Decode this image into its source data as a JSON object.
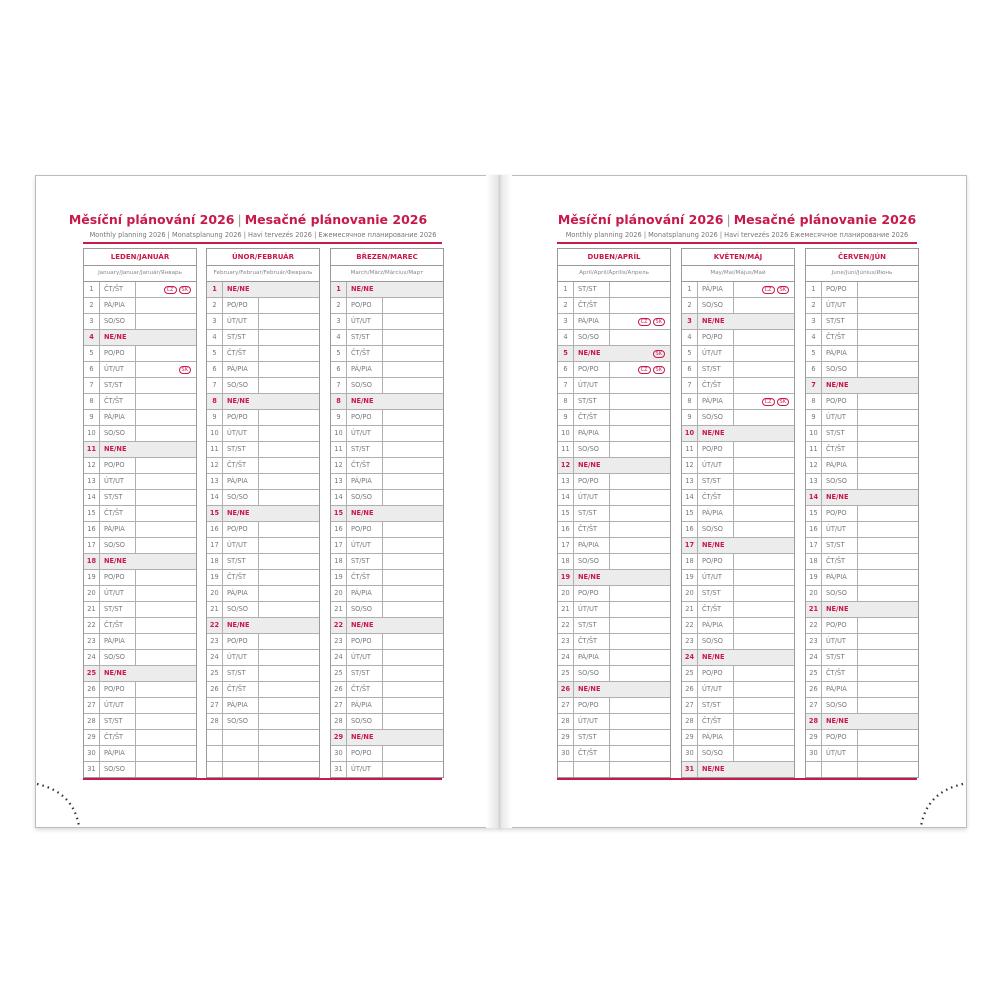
{
  "left": {
    "title_cz": "Měsíční plánování 2026",
    "title_sk": "Mesačné plánovanie 2026",
    "subtitle": "Monthly planning 2026 | Monatsplanung 2026 | Havi tervezés 2026 | Ежемесячное планирование 2026"
  },
  "right": {
    "title_cz": "Měsíční plánování 2026",
    "title_sk": "Mesačné plánovanie 2026",
    "subtitle": "Monthly planning 2026 | Monatsplanung 2026 | Havi tervezés 2026  Ежемесячное планирование 2026"
  },
  "colors": {
    "accent": "#c8194a",
    "sunday_bg": "#ececec",
    "grid": "#9a9a9a"
  },
  "months": [
    {
      "name": "LEDEN/JANUÁR",
      "subtitle": "January/Januar/Január/Январь",
      "weekdays": [
        "ČT/ŠT",
        "PÁ/PIA",
        "SO/SO",
        "NE/NE",
        "PO/PO",
        "ÚT/UT",
        "ST/ST",
        "ČT/ŠT",
        "PÁ/PIA",
        "SO/SO",
        "NE/NE",
        "PO/PO",
        "ÚT/UT",
        "ST/ST",
        "ČT/ŠT",
        "PÁ/PIA",
        "SO/SO",
        "NE/NE",
        "PO/PO",
        "ÚT/UT",
        "ST/ST",
        "ČT/ŠT",
        "PÁ/PIA",
        "SO/SO",
        "NE/NE",
        "PO/PO",
        "ÚT/UT",
        "ST/ST",
        "ČT/ŠT",
        "PÁ/PIA",
        "SO/SO"
      ],
      "holidays": {
        "1": [
          "CZ",
          "SK"
        ],
        "6": [
          "SK"
        ]
      }
    },
    {
      "name": "ÚNOR/FEBRUÁR",
      "subtitle": "February/Februar/Február/Февраль",
      "weekdays": [
        "NE/NE",
        "PO/PO",
        "ÚT/UT",
        "ST/ST",
        "ČT/ŠT",
        "PÁ/PIA",
        "SO/SO",
        "NE/NE",
        "PO/PO",
        "ÚT/UT",
        "ST/ST",
        "ČT/ŠT",
        "PÁ/PIA",
        "SO/SO",
        "NE/NE",
        "PO/PO",
        "ÚT/UT",
        "ST/ST",
        "ČT/ŠT",
        "PÁ/PIA",
        "SO/SO",
        "NE/NE",
        "PO/PO",
        "ÚT/UT",
        "ST/ST",
        "ČT/ŠT",
        "PÁ/PIA",
        "SO/SO"
      ],
      "holidays": {}
    },
    {
      "name": "BŘEZEN/MAREC",
      "subtitle": "March/März/Március/Март",
      "weekdays": [
        "NE/NE",
        "PO/PO",
        "ÚT/UT",
        "ST/ST",
        "ČT/ŠT",
        "PÁ/PIA",
        "SO/SO",
        "NE/NE",
        "PO/PO",
        "ÚT/UT",
        "ST/ST",
        "ČT/ŠT",
        "PÁ/PIA",
        "SO/SO",
        "NE/NE",
        "PO/PO",
        "ÚT/UT",
        "ST/ST",
        "ČT/ŠT",
        "PÁ/PIA",
        "SO/SO",
        "NE/NE",
        "PO/PO",
        "ÚT/UT",
        "ST/ST",
        "ČT/ŠT",
        "PÁ/PIA",
        "SO/SO",
        "NE/NE",
        "PO/PO",
        "ÚT/UT"
      ],
      "holidays": {}
    },
    {
      "name": "DUBEN/APRÍL",
      "subtitle": "April/April/Április/Апрель",
      "weekdays": [
        "ST/ST",
        "ČT/ŠT",
        "PÁ/PIA",
        "SO/SO",
        "NE/NE",
        "PO/PO",
        "ÚT/UT",
        "ST/ST",
        "ČT/ŠT",
        "PÁ/PIA",
        "SO/SO",
        "NE/NE",
        "PO/PO",
        "ÚT/UT",
        "ST/ST",
        "ČT/ŠT",
        "PÁ/PIA",
        "SO/SO",
        "NE/NE",
        "PO/PO",
        "ÚT/UT",
        "ST/ST",
        "ČT/ŠT",
        "PÁ/PIA",
        "SO/SO",
        "NE/NE",
        "PO/PO",
        "ÚT/UT",
        "ST/ST",
        "ČT/ŠT"
      ],
      "holidays": {
        "3": [
          "CZ",
          "SK"
        ],
        "5": [
          "SK"
        ],
        "6": [
          "CZ",
          "SK"
        ]
      }
    },
    {
      "name": "KVĚTEN/MÁJ",
      "subtitle": "May/Mai/Május/Май",
      "weekdays": [
        "PÁ/PIA",
        "SO/SO",
        "NE/NE",
        "PO/PO",
        "ÚT/UT",
        "ST/ST",
        "ČT/ŠT",
        "PÁ/PIA",
        "SO/SO",
        "NE/NE",
        "PO/PO",
        "ÚT/UT",
        "ST/ST",
        "ČT/ŠT",
        "PÁ/PIA",
        "SO/SO",
        "NE/NE",
        "PO/PO",
        "ÚT/UT",
        "ST/ST",
        "ČT/ŠT",
        "PÁ/PIA",
        "SO/SO",
        "NE/NE",
        "PO/PO",
        "ÚT/UT",
        "ST/ST",
        "ČT/ŠT",
        "PÁ/PIA",
        "SO/SO",
        "NE/NE"
      ],
      "holidays": {
        "1": [
          "CZ",
          "SK"
        ],
        "8": [
          "CZ",
          "SK"
        ]
      }
    },
    {
      "name": "ČERVEN/JÚN",
      "subtitle": "June/Juni/Június/Июнь",
      "weekdays": [
        "PO/PO",
        "ÚT/UT",
        "ST/ST",
        "ČT/ŠT",
        "PÁ/PIA",
        "SO/SO",
        "NE/NE",
        "PO/PO",
        "ÚT/UT",
        "ST/ST",
        "ČT/ŠT",
        "PÁ/PIA",
        "SO/SO",
        "NE/NE",
        "PO/PO",
        "ÚT/UT",
        "ST/ST",
        "ČT/ŠT",
        "PÁ/PIA",
        "SO/SO",
        "NE/NE",
        "PO/PO",
        "ÚT/UT",
        "ST/ST",
        "ČT/ŠT",
        "PÁ/PIA",
        "SO/SO",
        "NE/NE",
        "PO/PO",
        "ÚT/UT"
      ],
      "holidays": {}
    }
  ]
}
